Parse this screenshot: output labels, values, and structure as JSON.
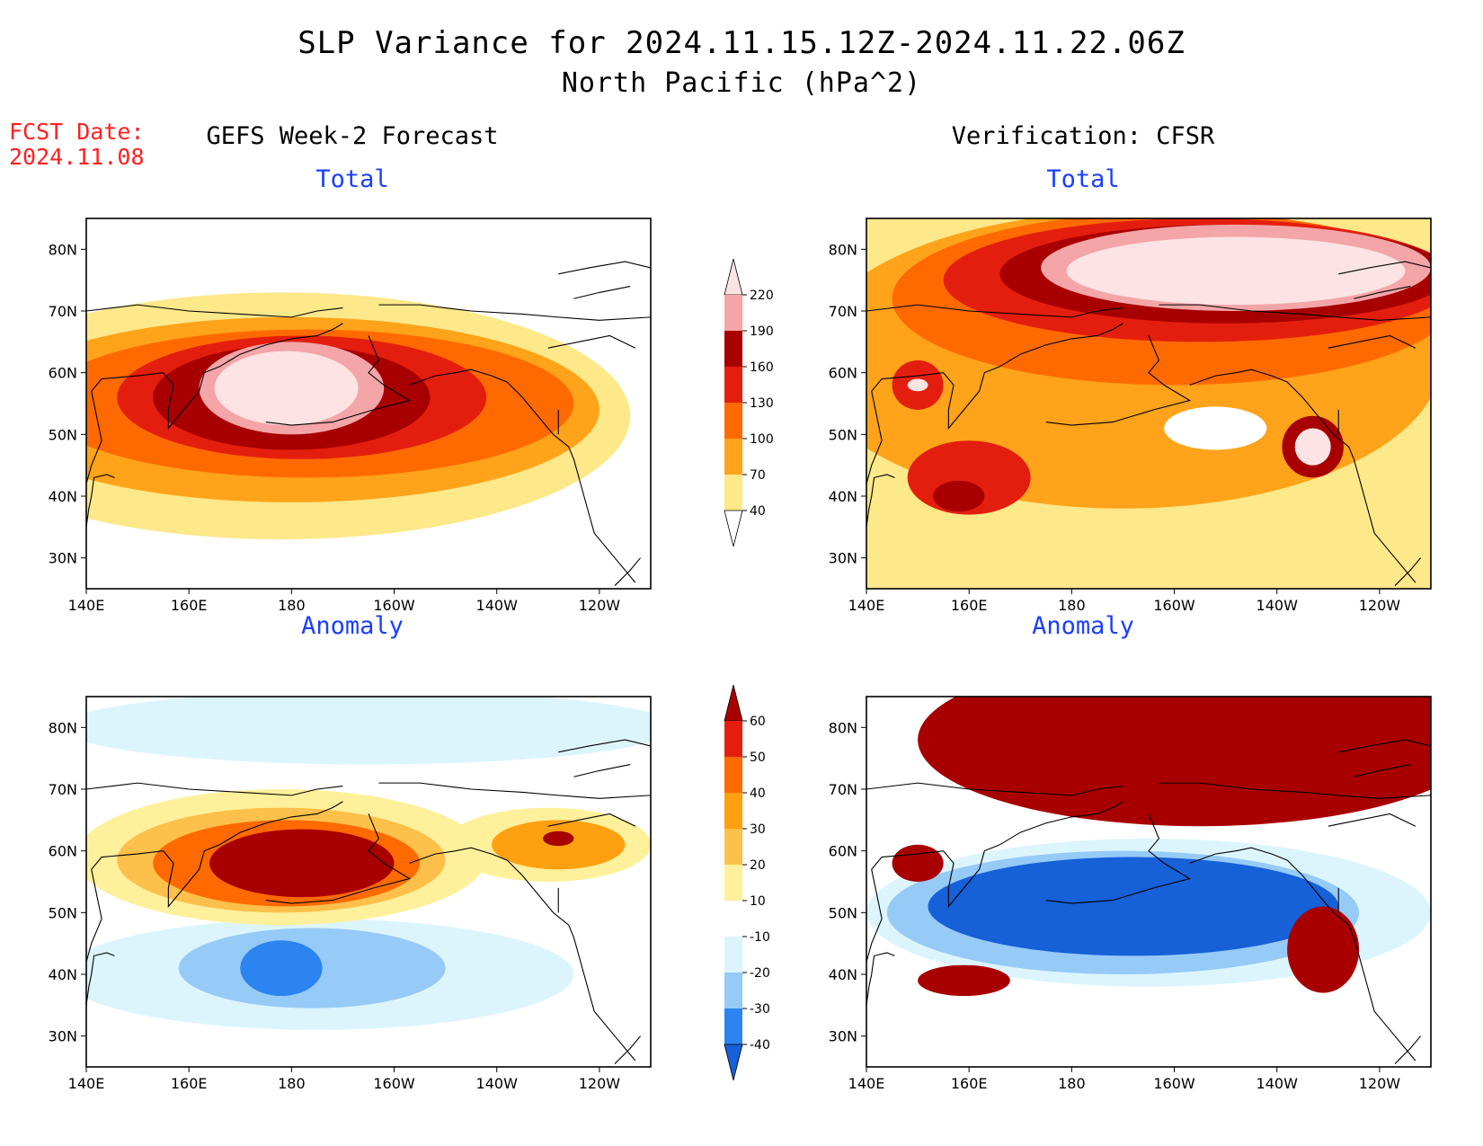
{
  "title": {
    "line1": "SLP Variance for 2024.11.15.12Z-2024.11.22.06Z",
    "line2": "North Pacific (hPa^2)"
  },
  "fcst_date": {
    "label": "FCST Date:",
    "value": "2024.11.08"
  },
  "columns": {
    "left": "GEFS Week-2 Forecast",
    "right": "Verification: CFSR"
  },
  "panels": [
    {
      "id": "forecast-total",
      "subtitle": "Total"
    },
    {
      "id": "verification-total",
      "subtitle": "Total"
    },
    {
      "id": "forecast-anomaly",
      "subtitle": "Anomaly"
    },
    {
      "id": "verification-anomaly",
      "subtitle": "Anomaly"
    }
  ],
  "axes": {
    "lon_labels": [
      "140E",
      "160E",
      "180",
      "160W",
      "140W",
      "120W"
    ],
    "lon_values": [
      140,
      160,
      180,
      200,
      220,
      240
    ],
    "lon_range": [
      140,
      250
    ],
    "lat_labels": [
      "30N",
      "40N",
      "50N",
      "60N",
      "70N",
      "80N"
    ],
    "lat_values": [
      30,
      40,
      50,
      60,
      70,
      80
    ],
    "lat_range": [
      25,
      85
    ]
  },
  "legends": {
    "total": {
      "labels": [
        "40",
        "70",
        "100",
        "130",
        "160",
        "190",
        "220"
      ],
      "colors": [
        "#ffffff",
        "#fde88a",
        "#ffa31a",
        "#ff6a00",
        "#e41e0e",
        "#a80000",
        "#f4a5a8",
        "#fde3e3"
      ]
    },
    "anomaly": {
      "labels": [
        "-40",
        "-30",
        "-20",
        "-10",
        "10",
        "20",
        "30",
        "40",
        "50",
        "60"
      ],
      "colors": [
        "#1660d8",
        "#2b84ef",
        "#96caf7",
        "#dcf5fd",
        "#ffffff",
        "#fff09b",
        "#fdc04a",
        "#ffa010",
        "#ff6a00",
        "#e41e0e",
        "#a80000"
      ]
    }
  },
  "map_fields": {
    "forecast_total": [
      {
        "color": "#fde88a",
        "cx": 178,
        "cy": 53,
        "rx": 68,
        "ry": 20
      },
      {
        "color": "#ffa31a",
        "cx": 180,
        "cy": 54,
        "rx": 60,
        "ry": 15
      },
      {
        "color": "#ff6a00",
        "cx": 183,
        "cy": 55,
        "rx": 52,
        "ry": 12
      },
      {
        "color": "#e41e0e",
        "cx": 182,
        "cy": 56,
        "rx": 36,
        "ry": 10
      },
      {
        "color": "#a80000",
        "cx": 180,
        "cy": 56,
        "rx": 27,
        "ry": 8.5
      },
      {
        "color": "#f4a5a8",
        "cx": 180,
        "cy": 57.5,
        "rx": 18,
        "ry": 7.5
      },
      {
        "color": "#fde3e3",
        "cx": 179,
        "cy": 57.5,
        "rx": 14,
        "ry": 6
      }
    ],
    "verification_total": [
      {
        "color": "#fde88a",
        "cx": 195,
        "cy": 60,
        "rx": 70,
        "ry": 32
      },
      {
        "color": "#ffa31a",
        "cx": 190,
        "cy": 62,
        "rx": 62,
        "ry": 24
      },
      {
        "color": "#ff6a00",
        "cx": 200,
        "cy": 72,
        "rx": 55,
        "ry": 14
      },
      {
        "color": "#e41e0e",
        "cx": 205,
        "cy": 75,
        "rx": 50,
        "ry": 10
      },
      {
        "color": "#a80000",
        "cx": 210,
        "cy": 76,
        "rx": 44,
        "ry": 8
      },
      {
        "color": "#f4a5a8",
        "cx": 212,
        "cy": 77,
        "rx": 38,
        "ry": 7
      },
      {
        "color": "#fde3e3",
        "cx": 212,
        "cy": 76.5,
        "rx": 33,
        "ry": 5.5
      },
      {
        "color": "#ffffff",
        "cx": 208,
        "cy": 51,
        "rx": 10,
        "ry": 3.5
      },
      {
        "color": "#e41e0e",
        "cx": 160,
        "cy": 43,
        "rx": 12,
        "ry": 6
      },
      {
        "color": "#a80000",
        "cx": 158,
        "cy": 40,
        "rx": 5,
        "ry": 2.5
      },
      {
        "color": "#a80000",
        "cx": 227,
        "cy": 48,
        "rx": 6,
        "ry": 5
      },
      {
        "color": "#fde3e3",
        "cx": 227,
        "cy": 48,
        "rx": 3.5,
        "ry": 3
      },
      {
        "color": "#e41e0e",
        "cx": 150,
        "cy": 58,
        "rx": 5,
        "ry": 4
      },
      {
        "color": "#fde3e3",
        "cx": 150,
        "cy": 58,
        "rx": 2,
        "ry": 1
      }
    ],
    "forecast_anomaly": [
      {
        "color": "#dcf5fd",
        "cx": 195,
        "cy": 80,
        "rx": 60,
        "ry": 6
      },
      {
        "color": "#dcf5fd",
        "cx": 185,
        "cy": 40,
        "rx": 50,
        "ry": 9
      },
      {
        "color": "#96caf7",
        "cx": 184,
        "cy": 41,
        "rx": 26,
        "ry": 6.5
      },
      {
        "color": "#2b84ef",
        "cx": 178,
        "cy": 41,
        "rx": 8,
        "ry": 4.5
      },
      {
        "color": "#fff09b",
        "cx": 178,
        "cy": 59,
        "rx": 40,
        "ry": 11
      },
      {
        "color": "#fdc04a",
        "cx": 178,
        "cy": 58.5,
        "rx": 32,
        "ry": 8.5
      },
      {
        "color": "#ff6a00",
        "cx": 179,
        "cy": 58,
        "rx": 26,
        "ry": 7
      },
      {
        "color": "#a80000",
        "cx": 182,
        "cy": 58,
        "rx": 18,
        "ry": 5.5
      },
      {
        "color": "#fff09b",
        "cx": 230,
        "cy": 61,
        "rx": 20,
        "ry": 6
      },
      {
        "color": "#ffa010",
        "cx": 232,
        "cy": 61,
        "rx": 13,
        "ry": 4
      },
      {
        "color": "#a80000",
        "cx": 232,
        "cy": 62,
        "rx": 3,
        "ry": 1.2
      }
    ],
    "verification_anomaly": [
      {
        "color": "#a80000",
        "cx": 205,
        "cy": 78,
        "rx": 55,
        "ry": 14
      },
      {
        "color": "#dcf5fd",
        "cx": 195,
        "cy": 50,
        "rx": 55,
        "ry": 12
      },
      {
        "color": "#96caf7",
        "cx": 190,
        "cy": 50,
        "rx": 46,
        "ry": 10
      },
      {
        "color": "#1660d8",
        "cx": 192,
        "cy": 51,
        "rx": 40,
        "ry": 8
      },
      {
        "color": "#a80000",
        "cx": 229,
        "cy": 44,
        "rx": 7,
        "ry": 7
      },
      {
        "color": "#a80000",
        "cx": 159,
        "cy": 39,
        "rx": 9,
        "ry": 2.5
      },
      {
        "color": "#a80000",
        "cx": 150,
        "cy": 58,
        "rx": 5,
        "ry": 3
      }
    ]
  }
}
